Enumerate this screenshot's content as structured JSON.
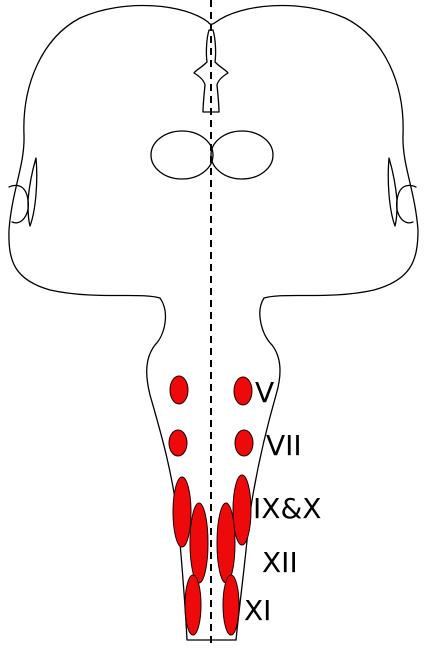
{
  "diagram": {
    "labels": {
      "v": "V",
      "vii": "VII",
      "ix_x": "IX&X",
      "xii": "XII",
      "xi": "XI"
    },
    "colors": {
      "nucleus_fill": "#ee0a0a",
      "outline": "#000000",
      "background": "#ffffff"
    }
  }
}
